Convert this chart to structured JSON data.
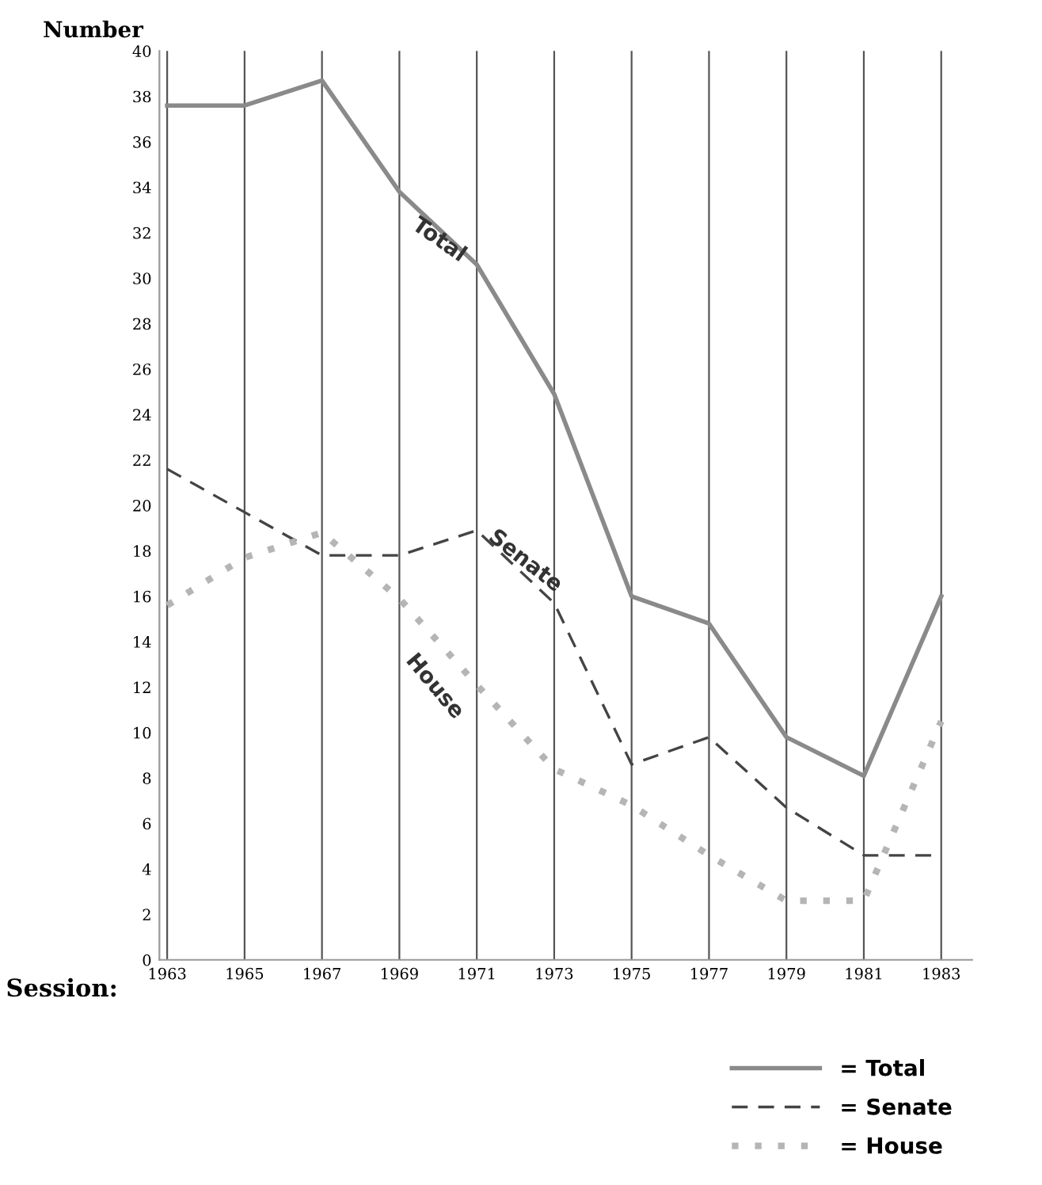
{
  "chart_data": {
    "type": "line",
    "xlabel": "Session:",
    "ylabel": "Number",
    "categories": [
      "1963",
      "1965",
      "1967",
      "1969",
      "1971",
      "1973",
      "1975",
      "1977",
      "1979",
      "1981",
      "1983"
    ],
    "series": [
      {
        "name": "= Total",
        "color": "#8a8a8a",
        "line_style": "solid",
        "values": [
          37.6,
          37.6,
          38.7,
          33.8,
          30.6,
          24.9,
          16.0,
          14.8,
          9.8,
          8.1,
          16.0
        ]
      },
      {
        "name": "= Senate",
        "color": "#444444",
        "line_style": "dashed",
        "values": [
          21.6,
          19.7,
          17.8,
          17.8,
          18.9,
          15.7,
          8.6,
          9.8,
          6.7,
          4.6,
          4.6
        ]
      },
      {
        "name": "= House",
        "color": "#b5b5b5",
        "line_style": "dotted",
        "values": [
          15.6,
          17.7,
          18.8,
          15.9,
          12.1,
          8.4,
          6.8,
          4.6,
          2.6,
          2.6,
          10.5
        ]
      }
    ],
    "ylim": [
      0,
      40
    ],
    "yticks": [
      0,
      2,
      4,
      6,
      8,
      10,
      12,
      14,
      16,
      18,
      20,
      22,
      24,
      26,
      28,
      30,
      32,
      34,
      36,
      38,
      40
    ],
    "grid": "x",
    "legend": "bottom right",
    "annotations": [
      {
        "text": "Total",
        "x": "1969",
        "y": 33.8
      },
      {
        "text": "Senate",
        "x": "1971",
        "y": 18.9
      },
      {
        "text": "House",
        "x": "1969",
        "y": 15.9
      }
    ]
  }
}
